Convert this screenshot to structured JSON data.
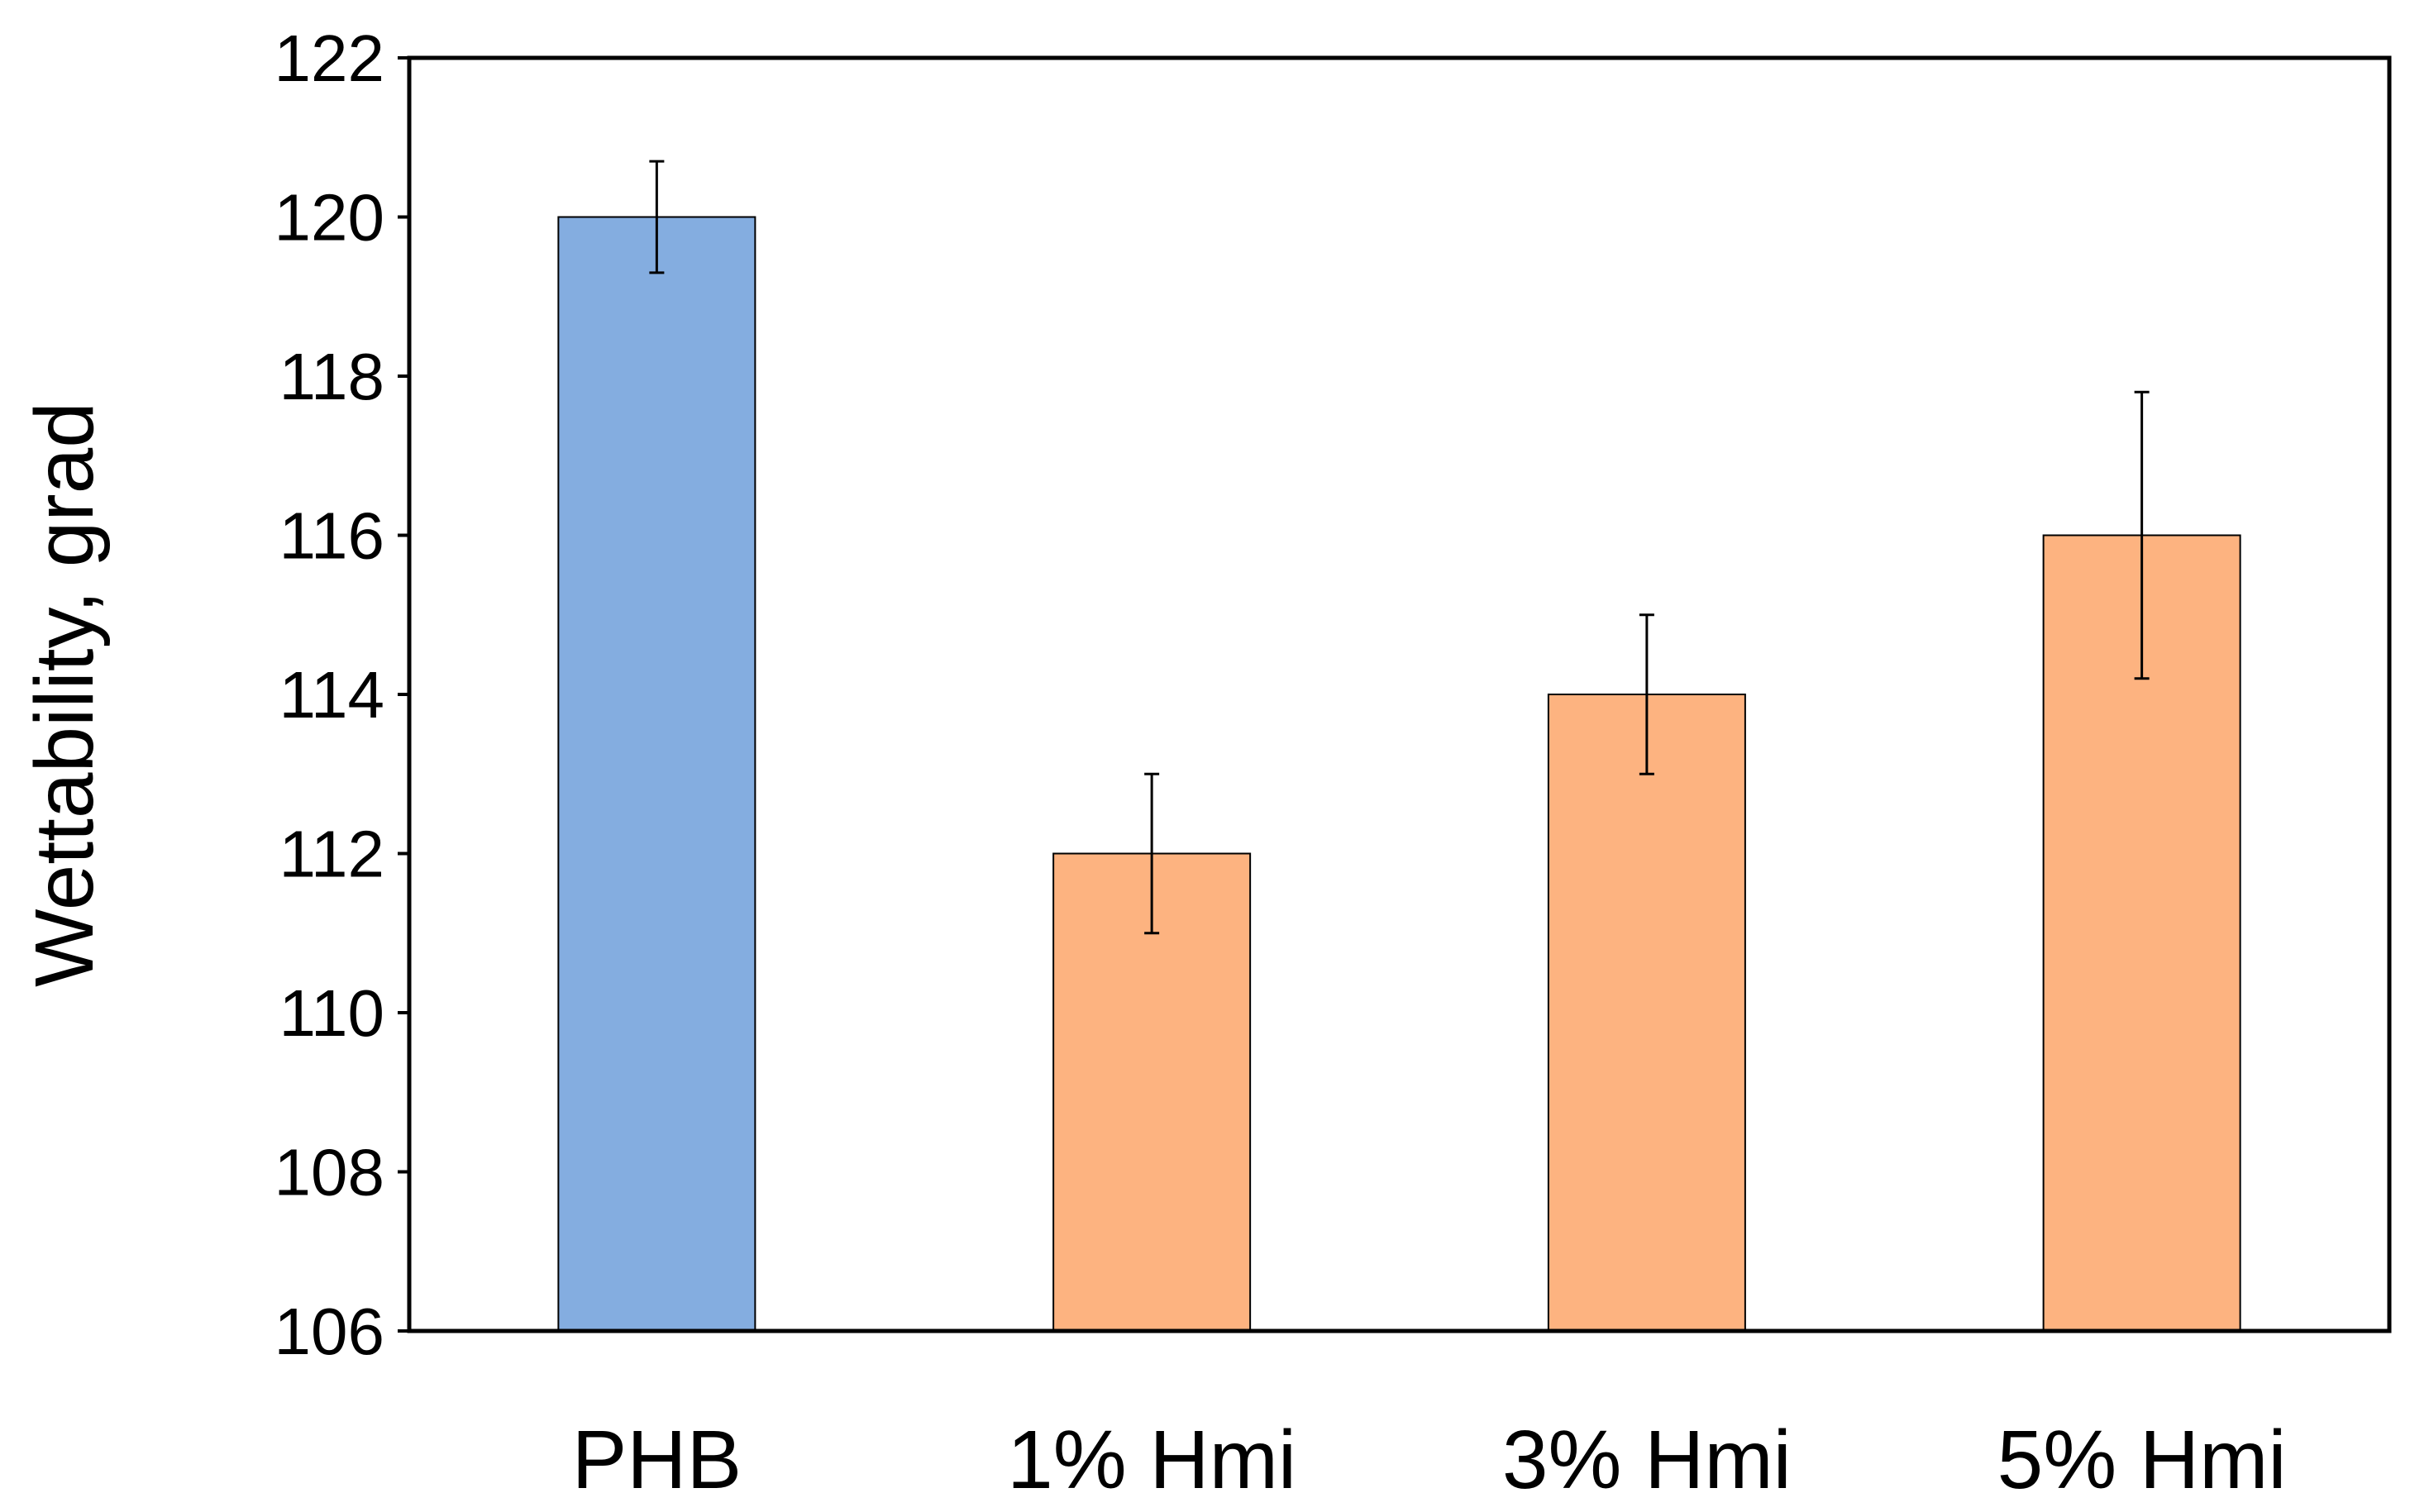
{
  "chart_data": {
    "type": "bar",
    "title": "",
    "xlabel": "",
    "ylabel": "Wettability, grad",
    "categories": [
      "PHB",
      "1% Hmi",
      "3% Hmi",
      "5% Hmi"
    ],
    "values": [
      120,
      112,
      114,
      116
    ],
    "errors": [
      0.7,
      1.0,
      1.0,
      1.8
    ],
    "bar_colors": [
      "#84ADE0",
      "#FDB380",
      "#FDB380",
      "#FDB380"
    ],
    "ylim": [
      106,
      122
    ],
    "yticks": [
      106,
      108,
      110,
      112,
      114,
      116,
      118,
      120,
      122
    ],
    "grid": false,
    "legend": "none"
  }
}
